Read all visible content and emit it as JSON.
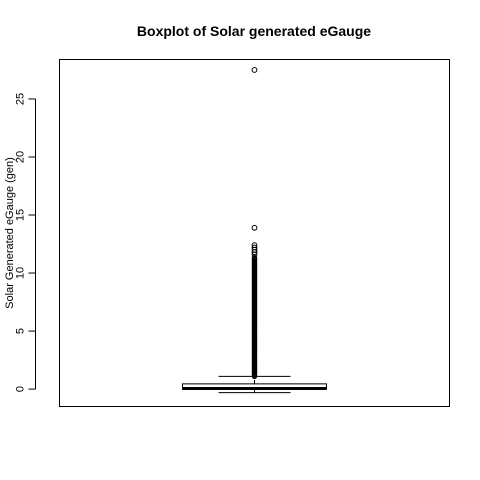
{
  "chart_data": {
    "type": "boxplot",
    "title": "Boxplot of Solar generated eGauge",
    "xlabel": "",
    "ylabel": "Solar Generated eGauge (gen)",
    "ylim": [
      -1.5,
      28.4
    ],
    "yticks": [
      0,
      5,
      10,
      15,
      20,
      25
    ],
    "grid": false,
    "box": {
      "whisker_low": -0.3,
      "q1": 0.0,
      "median": 0.05,
      "q3": 0.45,
      "whisker_high": 1.1
    },
    "outliers": {
      "dense_range": [
        1.1,
        11.4
      ],
      "scattered": [
        11.6,
        11.8,
        12.0,
        12.2,
        12.4,
        13.9,
        27.5
      ]
    }
  }
}
